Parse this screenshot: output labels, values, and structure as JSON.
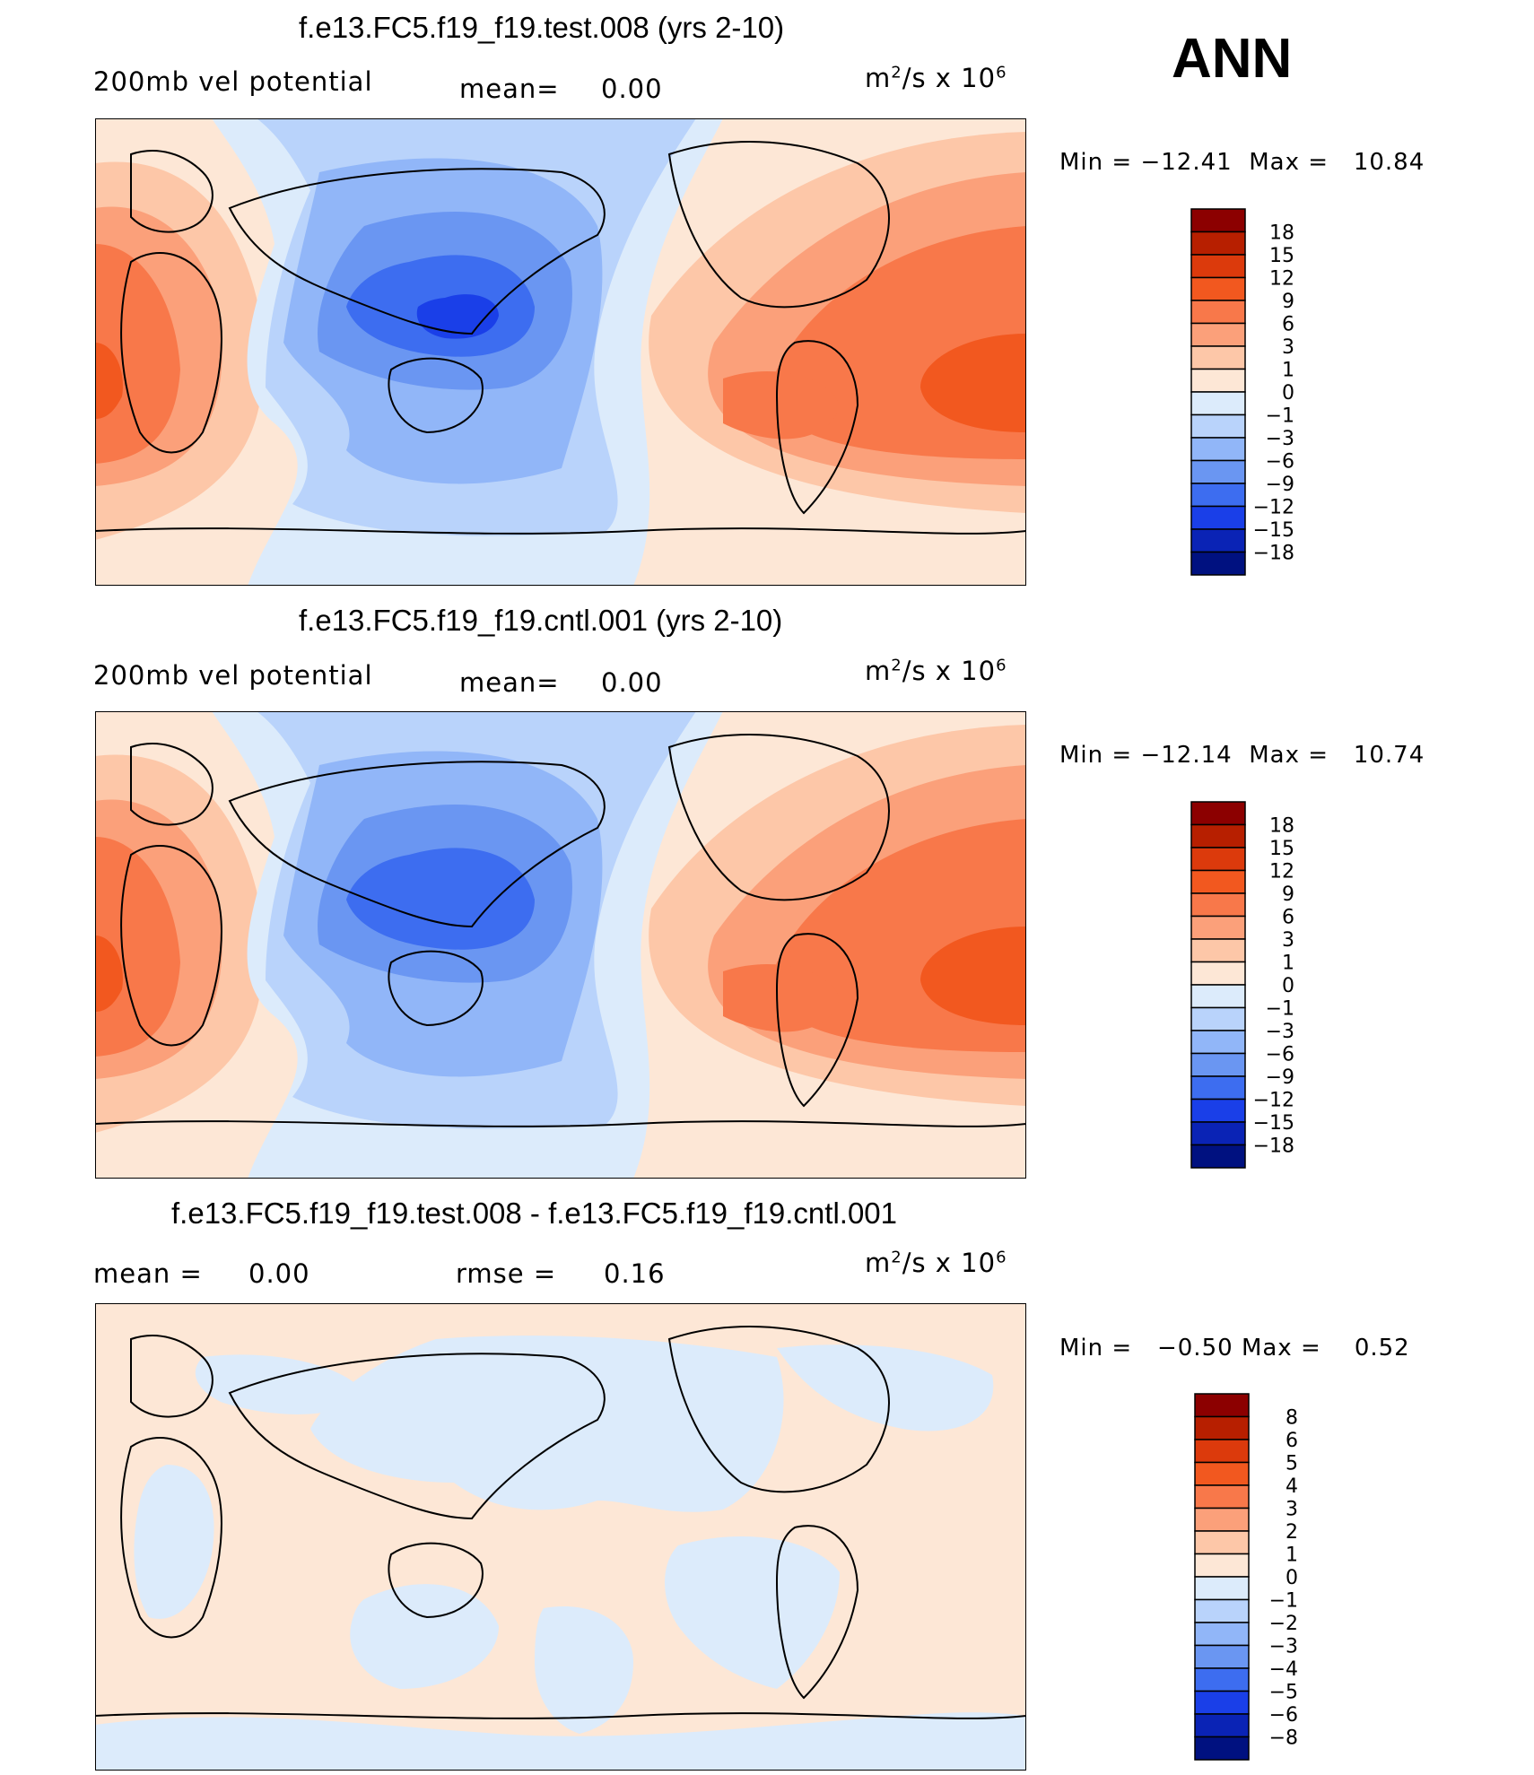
{
  "season": "ANN",
  "panels": [
    {
      "title": "f.e13.FC5.f19_f19.test.008 (yrs 2-10)",
      "left_label": "200mb vel potential",
      "mid_label": "mean=",
      "mid_value": "0.00",
      "rmse_label": "",
      "rmse_value": "",
      "units_base": "m",
      "units_mid": "/s x 10",
      "units_sup2": "2",
      "units_exp": "6",
      "min_label": "Min =",
      "min_value": "−12.41",
      "max_label": "Max =",
      "max_value": "10.84"
    },
    {
      "title": "f.e13.FC5.f19_f19.cntl.001 (yrs 2-10)",
      "left_label": "200mb vel potential",
      "mid_label": "mean=",
      "mid_value": "0.00",
      "rmse_label": "",
      "rmse_value": "",
      "units_base": "m",
      "units_mid": "/s x 10",
      "units_sup2": "2",
      "units_exp": "6",
      "min_label": "Min =",
      "min_value": "−12.14",
      "max_label": "Max =",
      "max_value": "10.74"
    },
    {
      "title": "f.e13.FC5.f19_f19.test.008 - f.e13.FC5.f19_f19.cntl.001",
      "left_label": "mean =",
      "mid_label": "",
      "mid_value": "0.00",
      "rmse_label": "rmse =",
      "rmse_value": "0.16",
      "units_base": "m",
      "units_mid": "/s x 10",
      "units_sup2": "2",
      "units_exp": "6",
      "min_label": "Min =",
      "min_value": "−0.50",
      "max_label": "Max =",
      "max_value": "0.52"
    }
  ],
  "colorbars": {
    "main_levels": [
      "18",
      "15",
      "12",
      "9",
      "6",
      "3",
      "1",
      "0",
      "−1",
      "−3",
      "−6",
      "−9",
      "−12",
      "−15",
      "−18"
    ],
    "diff_levels": [
      "8",
      "6",
      "5",
      "4",
      "3",
      "2",
      "1",
      "0",
      "−1",
      "−2",
      "−3",
      "−4",
      "−5",
      "−6",
      "−8"
    ],
    "colors": [
      "#8c0000",
      "#b71f00",
      "#dc3a0c",
      "#f2581f",
      "#f8784a",
      "#fba07a",
      "#fdc7a8",
      "#fde7d6",
      "#dcebfb",
      "#b9d3fb",
      "#91b6f8",
      "#6a96f2",
      "#3d6df0",
      "#1a3fe8",
      "#0a23b5",
      "#001180"
    ]
  },
  "chart_data": [
    {
      "type": "heatmap",
      "title": "f.e13.FC5.f19_f19.test.008 (yrs 2-10)",
      "variable": "200mb vel potential",
      "units": "m^2/s x 10^6",
      "mean": 0.0,
      "min": -12.41,
      "max": 10.84,
      "contour_levels": [
        -18,
        -15,
        -12,
        -9,
        -6,
        -3,
        -1,
        0,
        1,
        3,
        6,
        9,
        12,
        15,
        18
      ]
    },
    {
      "type": "heatmap",
      "title": "f.e13.FC5.f19_f19.cntl.001 (yrs 2-10)",
      "variable": "200mb vel potential",
      "units": "m^2/s x 10^6",
      "mean": 0.0,
      "min": -12.14,
      "max": 10.74,
      "contour_levels": [
        -18,
        -15,
        -12,
        -9,
        -6,
        -3,
        -1,
        0,
        1,
        3,
        6,
        9,
        12,
        15,
        18
      ]
    },
    {
      "type": "heatmap",
      "title": "f.e13.FC5.f19_f19.test.008 - f.e13.FC5.f19_f19.cntl.001",
      "units": "m^2/s x 10^6",
      "mean": 0.0,
      "rmse": 0.16,
      "min": -0.5,
      "max": 0.52,
      "contour_levels": [
        -8,
        -6,
        -5,
        -4,
        -3,
        -2,
        -1,
        0,
        1,
        2,
        3,
        4,
        5,
        6,
        8
      ]
    }
  ]
}
